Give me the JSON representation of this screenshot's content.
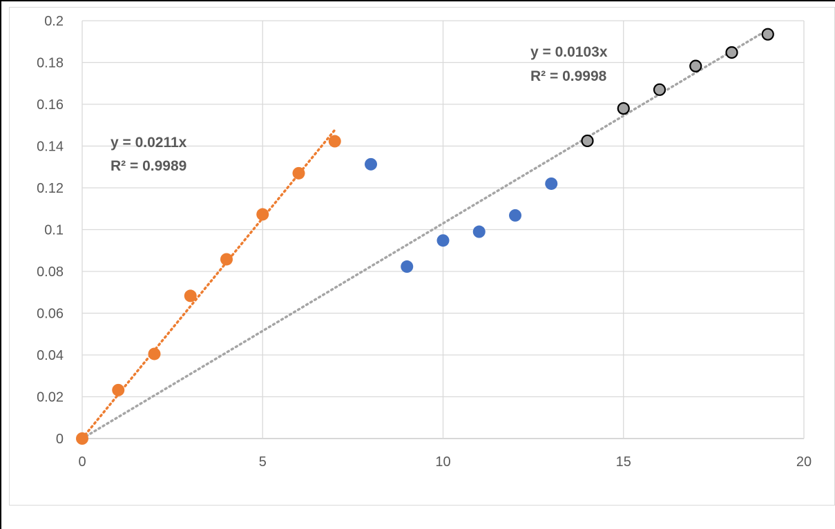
{
  "chart_data": {
    "type": "scatter",
    "title": "",
    "xlabel": "",
    "ylabel": "",
    "xlim": [
      0,
      20
    ],
    "ylim": [
      0,
      0.2
    ],
    "x_ticks": [
      0,
      5,
      10,
      15,
      20
    ],
    "x_tick_labels": [
      "0",
      "5",
      "10",
      "15",
      "20"
    ],
    "y_ticks": [
      0,
      0.02,
      0.04,
      0.06,
      0.08,
      0.1,
      0.12,
      0.14,
      0.16,
      0.18,
      0.2
    ],
    "y_tick_labels": [
      "0",
      "0.02",
      "0.04",
      "0.06",
      "0.08",
      "0.1",
      "0.12",
      "0.14",
      "0.16",
      "0.18",
      "0.2"
    ],
    "grid": true,
    "legend": "none",
    "series": [
      {
        "color": "#ED7D31",
        "marker_edge": "none",
        "x": [
          0,
          1,
          2,
          3,
          4,
          5,
          6,
          7
        ],
        "y": [
          0,
          0.0232,
          0.0405,
          0.0683,
          0.0858,
          0.1073,
          0.127,
          0.1423
        ]
      },
      {
        "color": "#4472C4",
        "marker_edge": "none",
        "x": [
          8,
          9,
          10,
          11,
          12,
          13
        ],
        "y": [
          0.1313,
          0.0823,
          0.0948,
          0.099,
          0.1068,
          0.122
        ]
      },
      {
        "color": "#A5A5A5",
        "marker_edge": "#000000",
        "x": [
          14,
          15,
          16,
          17,
          18,
          19
        ],
        "y": [
          0.1425,
          0.158,
          0.167,
          0.1783,
          0.1848,
          0.1935
        ]
      }
    ],
    "trendlines": [
      {
        "slope": 0.0211,
        "x_range": [
          0,
          7
        ],
        "color": "#ED7D31",
        "style": "dotted"
      },
      {
        "slope": 0.0103,
        "x_range": [
          0,
          19
        ],
        "color": "#A5A5A5",
        "style": "dotted"
      }
    ],
    "annotations": [
      {
        "equation": "y = 0.0211x",
        "r2": "R² = 0.9989"
      },
      {
        "equation": "y = 0.0103x",
        "r2": "R² = 0.9998"
      }
    ]
  }
}
